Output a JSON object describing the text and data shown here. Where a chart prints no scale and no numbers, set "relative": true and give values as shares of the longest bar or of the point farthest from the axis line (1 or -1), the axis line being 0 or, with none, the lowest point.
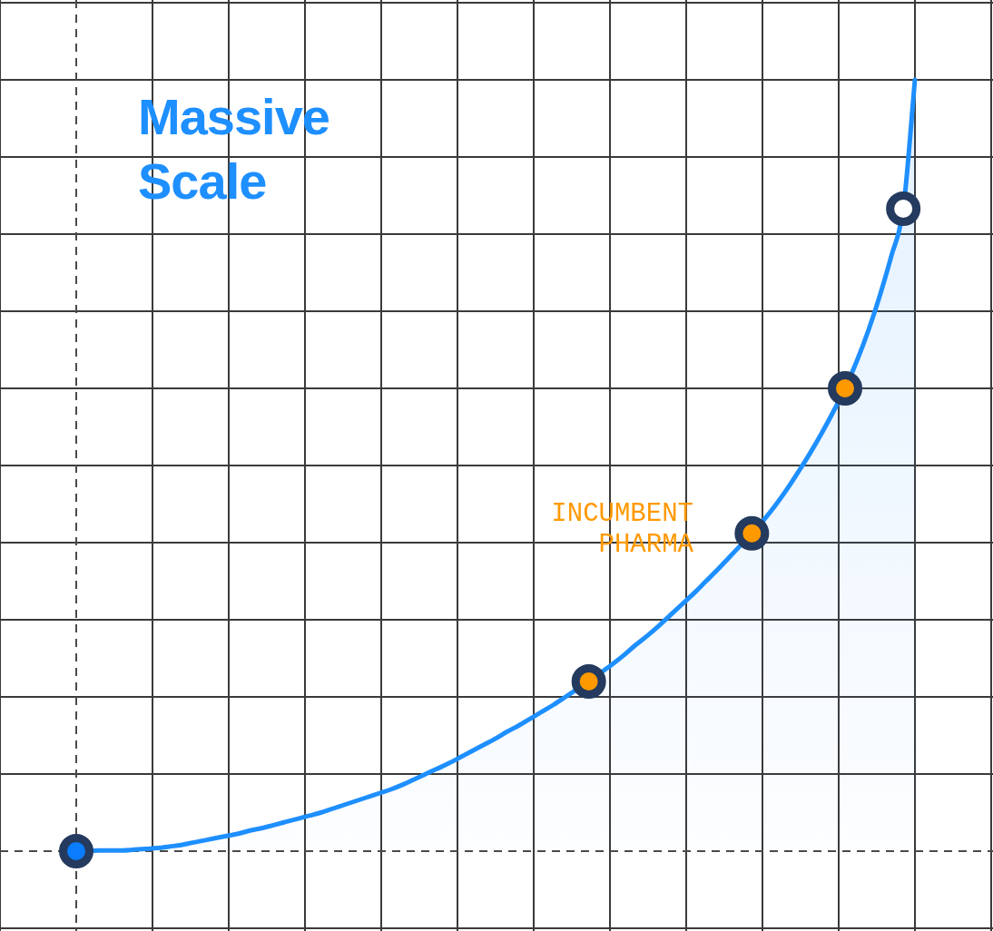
{
  "chart_data": {
    "type": "area",
    "title": "Massive Scale",
    "relative": true,
    "grid": true,
    "marker": "circle",
    "categories": [
      null,
      null,
      null,
      null,
      null,
      null,
      null,
      null,
      null,
      null,
      null,
      null,
      null,
      null,
      null,
      null,
      null,
      null,
      null,
      null,
      null,
      null,
      null,
      null,
      null,
      null,
      null,
      null,
      null,
      null,
      null,
      null,
      null,
      null,
      null,
      null,
      null,
      null,
      null,
      null,
      null,
      null,
      null,
      null,
      null,
      null,
      null,
      null,
      null,
      null,
      null,
      null,
      null,
      null,
      null,
      null,
      null,
      null,
      null,
      null,
      null,
      null,
      null,
      null,
      null,
      null,
      null,
      null,
      null,
      null,
      null,
      null,
      null
    ],
    "series": [
      {
        "marker": "none",
        "color": "#1e8fff",
        "values": [
          0,
          0,
          0.001,
          0.001,
          0.001,
          0.002,
          0.003,
          0.004,
          0.006,
          0.008,
          0.011,
          0.014,
          0.017,
          0.02,
          0.023,
          0.027,
          0.03,
          0.034,
          0.038,
          0.042,
          0.046,
          0.05,
          0.055,
          0.06,
          0.065,
          0.07,
          0.075,
          0.08,
          0.086,
          0.093,
          0.1,
          0.107,
          0.114,
          0.122,
          0.13,
          0.138,
          0.146,
          0.155,
          0.163,
          0.172,
          0.181,
          0.19,
          0.2,
          0.21,
          0.22,
          0.231,
          0.242,
          0.254,
          0.267,
          0.279,
          0.292,
          0.306,
          0.32,
          0.334,
          0.349,
          0.364,
          0.38,
          0.396,
          0.412,
          0.429,
          0.448,
          0.469,
          0.492,
          0.516,
          0.542,
          0.57,
          0.6,
          0.635,
          0.675,
          0.721,
          0.773,
          0.833,
          1
        ]
      },
      {
        "type": "line",
        "color": "#0a7cff",
        "values": [
          0,
          null,
          null,
          null,
          null,
          null,
          null,
          null,
          null,
          null,
          null,
          null,
          null,
          null,
          null,
          null,
          null,
          null,
          null,
          null,
          null,
          null,
          null,
          null,
          null,
          null,
          null,
          null,
          null,
          null,
          null,
          null,
          null,
          null,
          null,
          null,
          null,
          null,
          null,
          null,
          null,
          null,
          null,
          null,
          null,
          null,
          null,
          null,
          null,
          null,
          null,
          null,
          null,
          null,
          null,
          null,
          null,
          null,
          null,
          null,
          null,
          null,
          null,
          null,
          null,
          null,
          null,
          null,
          null,
          null,
          null,
          null,
          null
        ]
      },
      {
        "type": "line",
        "color": "#ff9900",
        "values": [
          null,
          null,
          null,
          null,
          null,
          null,
          null,
          null,
          null,
          null,
          null,
          null,
          null,
          null,
          null,
          null,
          null,
          null,
          null,
          null,
          null,
          null,
          null,
          null,
          null,
          null,
          null,
          null,
          null,
          null,
          null,
          null,
          null,
          null,
          null,
          null,
          null,
          null,
          null,
          null,
          null,
          null,
          null,
          null,
          0.22,
          null,
          null,
          null,
          null,
          null,
          null,
          null,
          null,
          null,
          null,
          null,
          null,
          null,
          null,
          null,
          null,
          null,
          null,
          null,
          null,
          null,
          null,
          null,
          null,
          null,
          null,
          null,
          null
        ]
      },
      {
        "type": "line",
        "name": "INCUMBENT PHARMA",
        "color": "#ff9900",
        "values": [
          null,
          null,
          null,
          null,
          null,
          null,
          null,
          null,
          null,
          null,
          null,
          null,
          null,
          null,
          null,
          null,
          null,
          null,
          null,
          null,
          null,
          null,
          null,
          null,
          null,
          null,
          null,
          null,
          null,
          null,
          null,
          null,
          null,
          null,
          null,
          null,
          null,
          null,
          null,
          null,
          null,
          null,
          null,
          null,
          null,
          null,
          null,
          null,
          null,
          null,
          null,
          null,
          null,
          null,
          null,
          null,
          null,
          null,
          0.412,
          null,
          null,
          null,
          null,
          null,
          null,
          null,
          null,
          null,
          null,
          null,
          null,
          null,
          null
        ]
      },
      {
        "type": "line",
        "color": "#ff9900",
        "values": [
          null,
          null,
          null,
          null,
          null,
          null,
          null,
          null,
          null,
          null,
          null,
          null,
          null,
          null,
          null,
          null,
          null,
          null,
          null,
          null,
          null,
          null,
          null,
          null,
          null,
          null,
          null,
          null,
          null,
          null,
          null,
          null,
          null,
          null,
          null,
          null,
          null,
          null,
          null,
          null,
          null,
          null,
          null,
          null,
          null,
          null,
          null,
          null,
          null,
          null,
          null,
          null,
          null,
          null,
          null,
          null,
          null,
          null,
          null,
          null,
          null,
          null,
          null,
          null,
          null,
          null,
          0.6,
          null,
          null,
          null,
          null,
          null,
          null
        ]
      },
      {
        "type": "line",
        "color": "#ffffff",
        "values": [
          null,
          null,
          null,
          null,
          null,
          null,
          null,
          null,
          null,
          null,
          null,
          null,
          null,
          null,
          null,
          null,
          null,
          null,
          null,
          null,
          null,
          null,
          null,
          null,
          null,
          null,
          null,
          null,
          null,
          null,
          null,
          null,
          null,
          null,
          null,
          null,
          null,
          null,
          null,
          null,
          null,
          null,
          null,
          null,
          null,
          null,
          null,
          null,
          null,
          null,
          null,
          null,
          null,
          null,
          null,
          null,
          null,
          null,
          null,
          null,
          null,
          null,
          null,
          null,
          null,
          null,
          null,
          null,
          null,
          null,
          null,
          0.833,
          null
        ]
      }
    ]
  }
}
